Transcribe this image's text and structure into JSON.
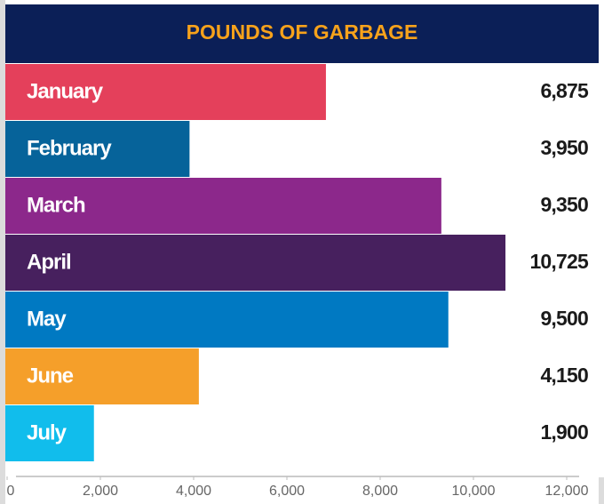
{
  "chart_data": {
    "type": "bar",
    "orientation": "horizontal",
    "title": "POUNDS OF GARBAGE",
    "categories": [
      "January",
      "February",
      "March",
      "April",
      "May",
      "June",
      "July"
    ],
    "values": [
      6875,
      3950,
      9350,
      10725,
      9500,
      4150,
      1900
    ],
    "value_labels": [
      "6,875",
      "3,950",
      "9,350",
      "10,725",
      "9,500",
      "4,150",
      "1,900"
    ],
    "colors": [
      "#e4405b",
      "#06639a",
      "#8c288b",
      "#47205e",
      "#0079c2",
      "#f59f2a",
      "#11bdec"
    ],
    "xlim": [
      0,
      12000
    ],
    "xticks": [
      0,
      {
        "value": 2000,
        "label": "2,000"
      },
      {
        "value": 4000,
        "label": "4,000"
      },
      {
        "value": 6000,
        "label": "6,000"
      },
      {
        "value": 8000,
        "label": "8,000"
      },
      {
        "value": 10000,
        "label": "10,000"
      },
      {
        "value": 12000,
        "label": "12,000"
      }
    ]
  }
}
